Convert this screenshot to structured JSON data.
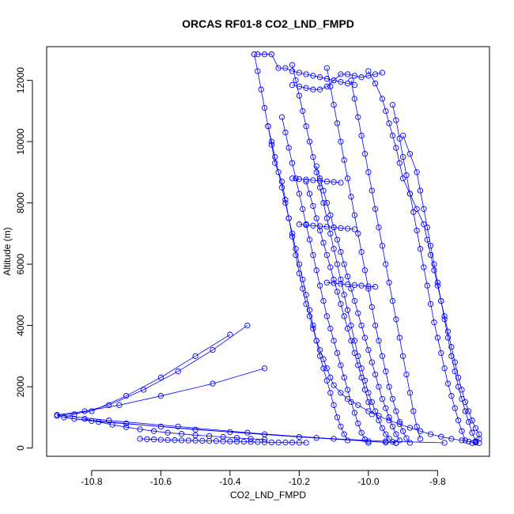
{
  "chart_data": {
    "type": "scatter",
    "title": "ORCAS RF01-8 CO2_LND_FMPD",
    "xlabel": "CO2_LND_FMPD",
    "ylabel": "Altitude (m)",
    "xlim": [
      -10.93,
      -9.65
    ],
    "ylim": [
      -270,
      13100
    ],
    "x_ticks": [
      -10.8,
      -10.6,
      -10.4,
      -10.2,
      -10.0,
      -9.8
    ],
    "x_tick_labels": [
      "-10.8",
      "-10.6",
      "-10.4",
      "-10.2",
      "-10.0",
      "-9.8"
    ],
    "y_ticks": [
      0,
      2000,
      4000,
      6000,
      8000,
      10000,
      12000
    ],
    "y_tick_labels": [
      "0",
      "2000",
      "4000",
      "6000",
      "8000",
      "10000",
      "12000"
    ],
    "grid": false,
    "color": "#0000ff",
    "marker": "open-circle",
    "series": [
      {
        "x": [
          -10.33,
          -10.32,
          -10.31,
          -10.3,
          -10.29,
          -10.28,
          -10.27,
          -10.25,
          -10.24,
          -10.23,
          -10.22,
          -10.21,
          -10.2,
          -10.19,
          -10.18,
          -10.17,
          -10.16,
          -10.15,
          -10.14,
          -10.13,
          -10.12,
          -10.11,
          -10.1,
          -10.08,
          -10.06,
          -10.03,
          -10.0,
          -9.97,
          -9.94,
          -9.91,
          -9.88,
          -9.85,
          -9.82,
          -9.79,
          -9.76,
          -9.73,
          -9.71,
          -9.69,
          -9.68
        ],
        "y": [
          12850,
          12300,
          11700,
          11100,
          10500,
          9900,
          9300,
          8700,
          8100,
          7500,
          6900,
          6300,
          5700,
          5200,
          4700,
          4300,
          3900,
          3500,
          3200,
          2900,
          2600,
          2300,
          2050,
          1800,
          1600,
          1400,
          1200,
          1050,
          900,
          780,
          660,
          550,
          450,
          370,
          300,
          250,
          210,
          180,
          160
        ]
      },
      {
        "x": [
          -10.0,
          -9.98,
          -9.96,
          -9.95,
          -9.94,
          -9.93,
          -9.92,
          -9.91,
          -9.9,
          -9.88,
          -9.86,
          -9.84,
          -9.83,
          -9.82,
          -9.81,
          -9.8,
          -9.79,
          -9.78,
          -9.77,
          -9.76,
          -9.75,
          -9.74,
          -9.73,
          -9.72,
          -9.71,
          -9.7,
          -9.69,
          -9.68,
          -9.68,
          -9.69,
          -9.7
        ],
        "y": [
          12300,
          11900,
          11400,
          11000,
          10600,
          10200,
          9800,
          9300,
          8800,
          8300,
          7800,
          7300,
          6800,
          6300,
          5800,
          5300,
          4800,
          4300,
          3800,
          3300,
          2800,
          2300,
          1900,
          1500,
          1200,
          900,
          650,
          450,
          300,
          200,
          160
        ]
      },
      {
        "x": [
          -10.22,
          -10.21,
          -10.2,
          -10.19,
          -10.18,
          -10.17,
          -10.16,
          -10.15,
          -10.14,
          -10.13,
          -10.12,
          -10.11,
          -10.1,
          -10.09,
          -10.08,
          -10.07,
          -10.06,
          -10.05,
          -10.04,
          -10.03,
          -10.02,
          -10.01,
          -10.0,
          -9.99,
          -9.98,
          -9.97,
          -9.96,
          -9.95,
          -9.94,
          -9.93,
          -9.92
        ],
        "y": [
          12500,
          12000,
          11500,
          11000,
          10500,
          10000,
          9500,
          9000,
          8500,
          8000,
          7500,
          7000,
          6500,
          6000,
          5500,
          5000,
          4500,
          4000,
          3500,
          3000,
          2600,
          2200,
          1800,
          1500,
          1200,
          900,
          650,
          450,
          300,
          200,
          160
        ]
      },
      {
        "x": [
          -10.12,
          -10.11,
          -10.1,
          -10.09,
          -10.08,
          -10.07,
          -10.06,
          -10.05,
          -10.04,
          -10.03,
          -10.02,
          -10.01,
          -10.0,
          -9.99,
          -9.98,
          -9.97,
          -9.96,
          -9.95,
          -9.94,
          -9.93,
          -9.92,
          -9.91,
          -9.9,
          -9.89,
          -9.88
        ],
        "y": [
          12400,
          11800,
          11200,
          10600,
          10000,
          9400,
          8800,
          8200,
          7600,
          7000,
          6400,
          5800,
          5200,
          4600,
          4000,
          3500,
          3000,
          2500,
          2000,
          1600,
          1200,
          850,
          550,
          320,
          170
        ]
      },
      {
        "x": [
          -10.25,
          -10.24,
          -10.23,
          -10.22,
          -10.21,
          -10.2,
          -10.19,
          -10.18,
          -10.17,
          -10.16,
          -10.15,
          -10.14,
          -10.13,
          -10.12,
          -10.11,
          -10.1,
          -10.09,
          -10.08,
          -10.07,
          -10.06,
          -10.05,
          -10.04,
          -10.03,
          -10.02,
          -10.01,
          -10.0
        ],
        "y": [
          10800,
          10300,
          9800,
          9300,
          8800,
          8300,
          7800,
          7300,
          6800,
          6300,
          5800,
          5300,
          4800,
          4300,
          3900,
          3500,
          3100,
          2700,
          2300,
          1900,
          1500,
          1150,
          800,
          500,
          280,
          170
        ]
      },
      {
        "x": [
          -10.15,
          -10.14,
          -10.13,
          -10.12,
          -10.11,
          -10.1,
          -10.09,
          -10.08,
          -10.07,
          -10.06,
          -10.05,
          -10.04,
          -10.03,
          -10.02,
          -10.01,
          -10.0,
          -9.99,
          -9.98,
          -9.97,
          -9.96,
          -9.95,
          -9.94,
          -9.93,
          -9.92,
          -9.91
        ],
        "y": [
          9200,
          8800,
          8400,
          8000,
          7600,
          7200,
          6800,
          6400,
          6000,
          5600,
          5200,
          4800,
          4400,
          4000,
          3600,
          3200,
          2800,
          2400,
          2000,
          1600,
          1300,
          1000,
          700,
          450,
          250
        ]
      },
      {
        "x": [
          -9.9,
          -9.88,
          -9.86,
          -9.85,
          -9.84,
          -9.83,
          -9.82,
          -9.81,
          -9.8,
          -9.79,
          -9.78,
          -9.77,
          -9.76,
          -9.75,
          -9.74,
          -9.73,
          -9.72,
          -9.71,
          -9.7,
          -9.69
        ],
        "y": [
          10200,
          9600,
          9000,
          8400,
          7800,
          7200,
          6600,
          6000,
          5400,
          4800,
          4200,
          3600,
          3000,
          2500,
          2000,
          1600,
          1200,
          850,
          500,
          220
        ]
      },
      {
        "x": [
          -10.05,
          -10.04,
          -10.03,
          -10.02,
          -10.01,
          -10.0,
          -9.99,
          -9.98,
          -9.97,
          -9.96,
          -9.95,
          -9.94,
          -9.93,
          -9.92,
          -9.91,
          -9.9,
          -9.89,
          -9.88,
          -9.87,
          -9.86,
          -9.85
        ],
        "y": [
          12000,
          11400,
          10800,
          10200,
          9600,
          9000,
          8400,
          7800,
          7200,
          6600,
          6000,
          5400,
          4800,
          4200,
          3600,
          3000,
          2400,
          1800,
          1200,
          700,
          300
        ]
      },
      {
        "x": [
          -10.18,
          -10.17,
          -10.16,
          -10.15,
          -10.14,
          -10.13,
          -10.12,
          -10.11,
          -10.1,
          -10.09,
          -10.08,
          -10.07,
          -10.06,
          -10.05,
          -10.04,
          -10.03,
          -10.02,
          -10.01,
          -10.0,
          -9.99
        ],
        "y": [
          8700,
          8300,
          7900,
          7500,
          7100,
          6700,
          6300,
          5900,
          5500,
          5100,
          4700,
          4300,
          3900,
          3500,
          3100,
          2700,
          2300,
          1900,
          1500,
          1100
        ]
      },
      {
        "x": [
          -10.29,
          -10.28,
          -10.27,
          -10.26,
          -10.25,
          -10.24,
          -10.23,
          -10.22,
          -10.21,
          -10.2,
          -10.19,
          -10.18,
          -10.17,
          -10.16,
          -10.15,
          -10.14,
          -10.13,
          -10.12,
          -10.11,
          -10.1,
          -10.09,
          -10.08,
          -10.07,
          -10.06
        ],
        "y": [
          10500,
          10000,
          9500,
          9000,
          8500,
          8000,
          7500,
          7000,
          6500,
          6000,
          5500,
          5000,
          4500,
          4000,
          3500,
          3000,
          2600,
          2200,
          1800,
          1400,
          1000,
          700,
          450,
          250
        ]
      },
      {
        "x": [
          -9.93,
          -9.92,
          -9.91,
          -9.9,
          -9.89,
          -9.88,
          -9.87,
          -9.86,
          -9.85,
          -9.84,
          -9.83,
          -9.82,
          -9.81,
          -9.8,
          -9.79,
          -9.78,
          -9.77,
          -9.76,
          -9.75,
          -9.74,
          -9.73,
          -9.72
        ],
        "y": [
          11200,
          10700,
          10100,
          9500,
          8900,
          8300,
          7700,
          7100,
          6500,
          5900,
          5300,
          4700,
          4100,
          3600,
          3100,
          2600,
          2100,
          1700,
          1300,
          900,
          550,
          250
        ]
      },
      {
        "x": [
          -10.4,
          -10.5,
          -10.6,
          -10.7,
          -10.8,
          -10.9,
          -10.85,
          -10.7,
          -10.5,
          -10.3,
          -10.1,
          -9.95
        ],
        "y": [
          3700,
          3000,
          2300,
          1700,
          1200,
          1050,
          950,
          800,
          600,
          450,
          300,
          180
        ]
      },
      {
        "x": [
          -10.35,
          -10.45,
          -10.55,
          -10.65,
          -10.75,
          -10.85,
          -10.88,
          -10.8,
          -10.6,
          -10.4,
          -10.2,
          -10.0,
          -9.92
        ],
        "y": [
          4000,
          3200,
          2500,
          1900,
          1400,
          1100,
          1000,
          880,
          700,
          520,
          360,
          220,
          170
        ]
      },
      {
        "x": [
          -10.3,
          -10.45,
          -10.6,
          -10.72,
          -10.82,
          -10.9,
          -10.75,
          -10.55,
          -10.35,
          -10.15,
          -9.95,
          -9.78
        ],
        "y": [
          2600,
          2100,
          1700,
          1400,
          1200,
          1080,
          900,
          700,
          500,
          330,
          220,
          170
        ]
      },
      {
        "x": [
          -10.66,
          -10.64,
          -10.62,
          -10.6,
          -10.58,
          -10.56,
          -10.54,
          -10.52,
          -10.5,
          -10.48,
          -10.46,
          -10.44,
          -10.42,
          -10.4,
          -10.38,
          -10.36,
          -10.34,
          -10.32,
          -10.3,
          -10.28,
          -10.26,
          -10.24,
          -10.22,
          -10.2,
          -10.18
        ],
        "y": [
          300,
          290,
          280,
          270,
          260,
          255,
          250,
          245,
          240,
          235,
          230,
          225,
          220,
          215,
          210,
          205,
          200,
          195,
          190,
          185,
          180,
          178,
          176,
          174,
          172
        ]
      },
      {
        "x": [
          -10.82,
          -10.78,
          -10.74,
          -10.7,
          -10.66,
          -10.62,
          -10.58,
          -10.54,
          -10.5,
          -10.46,
          -10.42,
          -10.38,
          -10.34,
          -10.3
        ],
        "y": [
          950,
          850,
          760,
          680,
          610,
          550,
          500,
          460,
          420,
          390,
          360,
          330,
          300,
          280
        ]
      },
      {
        "x": [
          -10.32,
          -10.3,
          -10.28,
          -10.26,
          -10.24,
          -10.22,
          -10.2,
          -10.18,
          -10.16,
          -10.14,
          -10.12,
          -10.1,
          -10.08,
          -10.06,
          -10.04
        ],
        "y": [
          12850,
          12850,
          12850,
          12400,
          12400,
          12300,
          12250,
          12200,
          12150,
          12100,
          12050,
          12000,
          11950,
          11900,
          11850
        ]
      },
      {
        "x": [
          -10.22,
          -10.2,
          -10.18,
          -10.16,
          -10.14,
          -10.12,
          -10.1,
          -10.08,
          -10.06,
          -10.04,
          -10.02,
          -10.0,
          -9.98,
          -9.96
        ],
        "y": [
          11850,
          11800,
          11750,
          11700,
          11700,
          11800,
          12000,
          12200,
          12200,
          12150,
          12100,
          12150,
          12200,
          12250
        ]
      },
      {
        "x": [
          -10.2,
          -10.18,
          -10.16,
          -10.14,
          -10.12,
          -10.1,
          -10.08,
          -10.06,
          -10.04
        ],
        "y": [
          7300,
          7280,
          7260,
          7240,
          7220,
          7200,
          7180,
          7160,
          7140
        ]
      },
      {
        "x": [
          -10.22,
          -10.2,
          -10.18,
          -10.16,
          -10.14,
          -10.12,
          -10.1,
          -10.08
        ],
        "y": [
          8800,
          8780,
          8760,
          8740,
          8720,
          8700,
          8680,
          8660
        ]
      },
      {
        "x": [
          -10.12,
          -10.1,
          -10.08,
          -10.06,
          -10.04,
          -10.02,
          -10.0,
          -9.98
        ],
        "y": [
          5400,
          5380,
          5360,
          5340,
          5320,
          5300,
          5280,
          5260
        ]
      }
    ]
  }
}
